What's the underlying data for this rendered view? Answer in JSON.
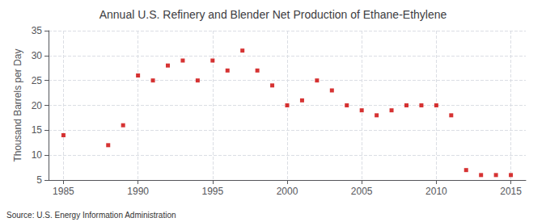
{
  "chart_data": {
    "type": "scatter",
    "title": "Annual U.S. Refinery and Blender Net Production of Ethane-Ethylene",
    "ylabel": "Thousand Barrels per Day",
    "annotations": [
      "Source: U.S. Energy Information Administration"
    ],
    "x": [
      1985,
      1988,
      1989,
      1990,
      1991,
      1992,
      1993,
      1994,
      1995,
      1996,
      1997,
      1998,
      1999,
      2000,
      2001,
      2002,
      2003,
      2004,
      2005,
      2006,
      2007,
      2008,
      2009,
      2010,
      2011,
      2012,
      2013,
      2014,
      2015
    ],
    "values": [
      14,
      12,
      16,
      26,
      25,
      28,
      29,
      25,
      29,
      27,
      31,
      27,
      24,
      20,
      21,
      25,
      23,
      20,
      19,
      18,
      19,
      20,
      20,
      20,
      18,
      7,
      6,
      6,
      6
    ],
    "color": "#cc0000",
    "marker": "square",
    "xlim": [
      1984,
      2016
    ],
    "xticks": [
      1985,
      1990,
      1995,
      2000,
      2005,
      2010,
      2015
    ],
    "ylim": [
      5,
      35
    ],
    "yticks": [
      5,
      10,
      15,
      20,
      25,
      30,
      35
    ],
    "grid": true
  }
}
